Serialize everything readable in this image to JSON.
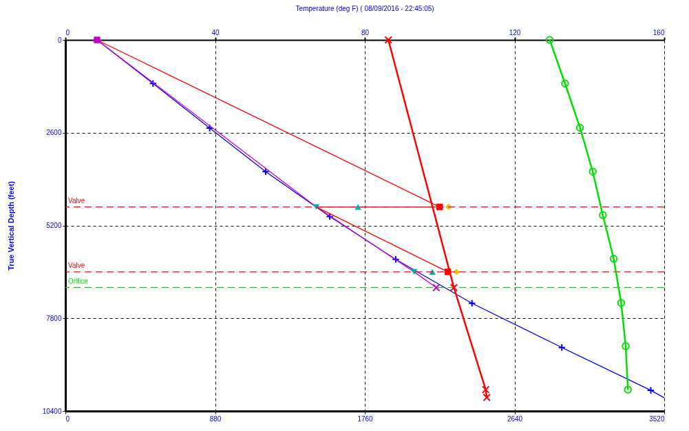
{
  "chart_data": {
    "type": "line",
    "title": "Temperature  (deg F) ( 08/09/2016 - 22:45:05)",
    "ylabel": "True Vertical Depth  (feet)",
    "xlim": [
      0,
      3520
    ],
    "xticks": [
      0,
      880,
      1760,
      2640,
      3520
    ],
    "x2lim": [
      0,
      160
    ],
    "x2ticks": [
      0,
      40,
      80,
      120,
      160
    ],
    "ylim": [
      10400,
      0
    ],
    "yticks": [
      0,
      2600,
      5200,
      7800,
      10400
    ],
    "grid": true,
    "series": [
      {
        "color": "#0000ff",
        "marker": "none",
        "x": [
          186,
          515,
          848,
          1177,
          1554,
          1942,
          2390,
          2918,
          3441,
          3520
        ],
        "values": [
          0,
          1220,
          2470,
          3690,
          4950,
          6150,
          7380,
          8620,
          9820,
          10030
        ]
      },
      {
        "type": "scatter",
        "color": "#0000ff",
        "marker": "cross",
        "x": [
          515,
          848,
          1177,
          1554,
          1942,
          2390,
          2918,
          3441
        ],
        "values": [
          1220,
          2470,
          3690,
          4950,
          6150,
          7380,
          8620,
          9820
        ]
      },
      {
        "color": "#cc00cc",
        "marker": "none",
        "x": [
          186,
          1475,
          2050,
          2180
        ],
        "values": [
          0,
          4680,
          6500,
          6940
        ]
      },
      {
        "color": "#ff0000",
        "marker": "none",
        "x": [
          186,
          2200
        ],
        "values": [
          0,
          4680
        ]
      },
      {
        "color": "#ff0000",
        "marker": "none",
        "x": [
          1475,
          2200
        ],
        "values": [
          4680,
          4680
        ]
      },
      {
        "color": "#ff0000",
        "marker": "none",
        "x": [
          1475,
          2248
        ],
        "values": [
          4680,
          6500
        ]
      },
      {
        "type": "scatter",
        "color": "#cc00cc",
        "marker": "square",
        "x": [
          186
        ],
        "values": [
          0
        ]
      },
      {
        "type": "scatter",
        "color": "#cc00cc",
        "marker": "x",
        "x": [
          2180
        ],
        "values": [
          6940
        ]
      },
      {
        "type": "scatter",
        "color": "#00b0b0",
        "marker": "triangle",
        "x": [
          1720,
          2157
        ],
        "values": [
          4680,
          6500
        ]
      },
      {
        "type": "scatter",
        "color": "#00b0b0",
        "marker": "triangle-down",
        "x": [
          1475,
          2050
        ],
        "values": [
          4680,
          6500
        ]
      },
      {
        "type": "scatter",
        "color": "#ff0000",
        "marker": "square",
        "x": [
          2200,
          2248
        ],
        "values": [
          4680,
          6500
        ]
      },
      {
        "type": "scatter",
        "color": "#ffc000",
        "marker": "diamond",
        "x": [
          2252,
          2299
        ],
        "values": [
          4680,
          6500
        ]
      },
      {
        "axis": "x2",
        "color": "#ff0000",
        "marker": "x",
        "x": [
          86.3,
          103.8,
          112.3,
          112.6
        ],
        "values": [
          0,
          6940,
          9800,
          10020
        ]
      },
      {
        "axis": "x2",
        "color": "#00e000",
        "marker": "circle",
        "x": [
          129.4,
          133.5,
          137.5,
          140.9,
          143.6,
          146.5,
          148.5,
          149.7,
          150.3
        ],
        "values": [
          0,
          1220,
          2460,
          3690,
          4910,
          6130,
          7370,
          8580,
          9800
        ]
      }
    ],
    "ref_lines": [
      {
        "axis": "y",
        "value": 4680,
        "label": "Valve",
        "color": "#ff0000",
        "line_style": "dashed"
      },
      {
        "axis": "y",
        "value": 6500,
        "label": "Valve",
        "color": "#ff0000",
        "line_style": "dashed"
      },
      {
        "axis": "y",
        "value": 6940,
        "label": "Orifice",
        "color": "#00e000",
        "line_style": "dashed"
      }
    ]
  }
}
